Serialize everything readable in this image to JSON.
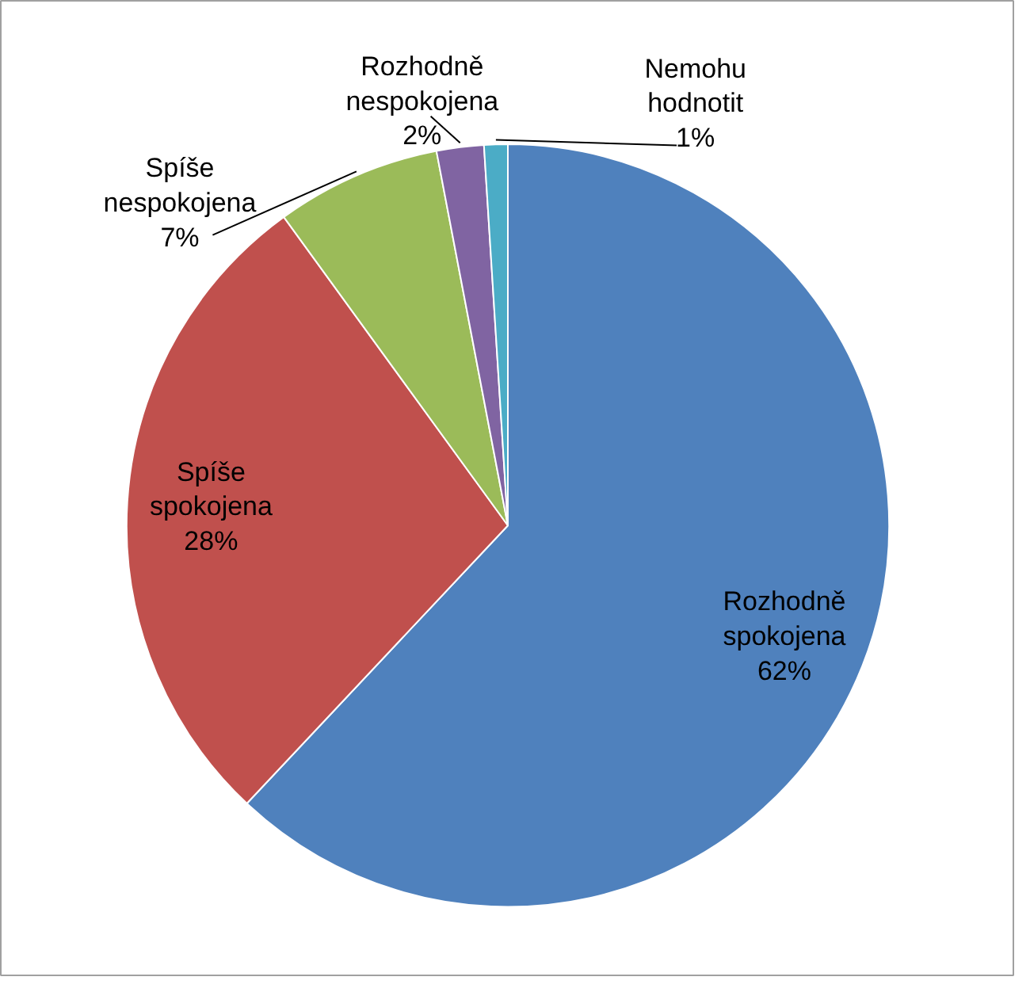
{
  "chart_data": {
    "type": "pie",
    "categories": [
      "Rozhodně spokojena",
      "Spíše spokojena",
      "Spíše nespokojena",
      "Rozhodně nespokojena",
      "Nemohu hodnotit"
    ],
    "values": [
      62,
      28,
      7,
      2,
      1
    ],
    "colors": [
      "#4f81bd",
      "#c0504d",
      "#9bbb59",
      "#8064a2",
      "#4bacc6"
    ],
    "value_labels": [
      "62%",
      "28%",
      "7%",
      "2%",
      "1%"
    ]
  }
}
